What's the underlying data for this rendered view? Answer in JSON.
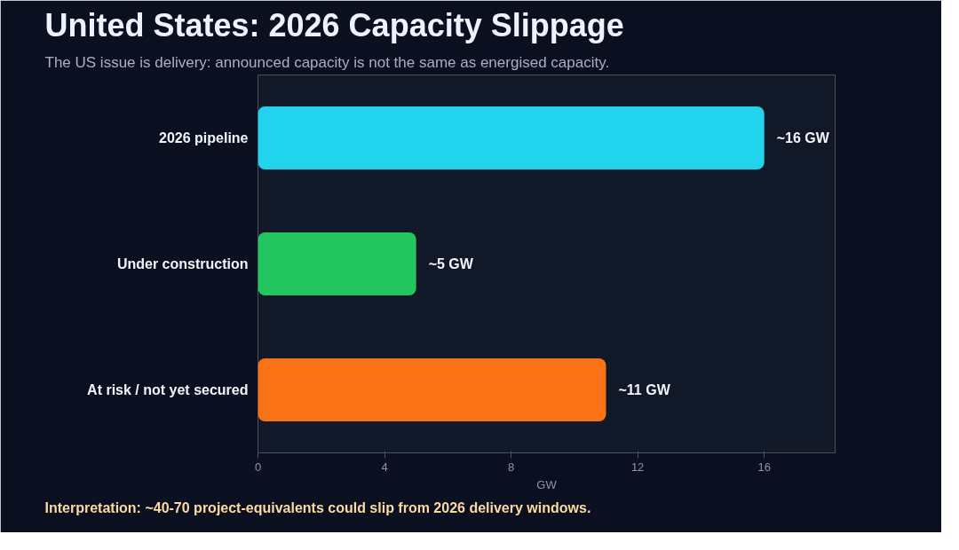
{
  "chart_data": {
    "type": "bar",
    "orientation": "horizontal",
    "title": "United States: 2026 Capacity Slippage",
    "subtitle": "The US issue is delivery: announced capacity is not the same as energised capacity.",
    "categories": [
      "2026 pipeline",
      "Under construction",
      "At risk / not yet secured"
    ],
    "values": [
      16,
      5,
      11
    ],
    "colors": [
      "#22d3ee",
      "#22c55e",
      "#f97316"
    ],
    "value_labels": [
      "~16 GW",
      "~5 GW",
      "~11 GW"
    ],
    "xlim": [
      0,
      16
    ],
    "xticks": [
      0,
      4,
      8,
      12,
      16
    ],
    "xlabel": "GW",
    "grid": false,
    "annotations": [
      "Interpretation: ~40-70 project-equivalents could slip from 2026 delivery windows."
    ]
  }
}
